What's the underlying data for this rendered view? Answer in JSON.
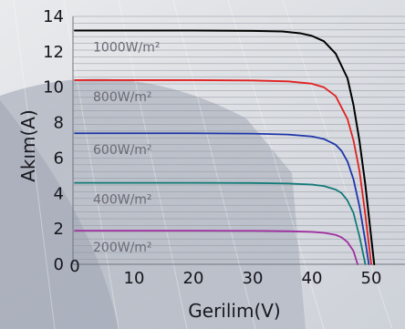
{
  "chart_data": {
    "type": "line",
    "title": "",
    "xlabel": "Gerilim(V)",
    "ylabel": "Akım(A)",
    "xlim": [
      0,
      52
    ],
    "ylim": [
      0,
      14
    ],
    "xticks": [
      0,
      10,
      20,
      30,
      40,
      50
    ],
    "yticks": [
      0,
      2,
      4,
      6,
      8,
      10,
      12,
      14
    ],
    "grid": "horizontal",
    "series": [
      {
        "name": "1000W/m²",
        "color": "#000000",
        "x": [
          0,
          10,
          20,
          30,
          35,
          38,
          40,
          42,
          44,
          46,
          47,
          48,
          49,
          50,
          50.5
        ],
        "y": [
          13.2,
          13.2,
          13.2,
          13.18,
          13.15,
          13.05,
          12.9,
          12.6,
          11.9,
          10.5,
          9.0,
          7.0,
          4.5,
          1.5,
          0
        ]
      },
      {
        "name": "800W/m²",
        "color": "#e02020",
        "x": [
          0,
          10,
          20,
          30,
          36,
          40,
          42,
          44,
          46,
          47,
          48,
          49,
          50
        ],
        "y": [
          10.4,
          10.4,
          10.4,
          10.38,
          10.33,
          10.2,
          10.0,
          9.5,
          8.2,
          7.0,
          5.3,
          2.8,
          0
        ]
      },
      {
        "name": "600W/m²",
        "color": "#1f35a8",
        "x": [
          0,
          10,
          20,
          30,
          36,
          40,
          42,
          44,
          45,
          46,
          47,
          48,
          49,
          49.6
        ],
        "y": [
          7.4,
          7.4,
          7.4,
          7.38,
          7.33,
          7.22,
          7.08,
          6.75,
          6.4,
          5.8,
          4.8,
          3.3,
          1.3,
          0
        ]
      },
      {
        "name": "400W/m²",
        "color": "#127a77",
        "x": [
          0,
          10,
          20,
          30,
          36,
          40,
          42,
          44,
          45,
          46,
          47,
          48,
          49
        ],
        "y": [
          4.6,
          4.6,
          4.6,
          4.59,
          4.56,
          4.5,
          4.42,
          4.22,
          4.02,
          3.6,
          2.9,
          1.6,
          0
        ]
      },
      {
        "name": "200W/m²",
        "color": "#a02fa0",
        "x": [
          0,
          10,
          20,
          30,
          36,
          40,
          42,
          44,
          45,
          46,
          47,
          47.7
        ],
        "y": [
          1.9,
          1.9,
          1.9,
          1.89,
          1.87,
          1.83,
          1.78,
          1.66,
          1.52,
          1.25,
          0.75,
          0
        ]
      }
    ]
  }
}
